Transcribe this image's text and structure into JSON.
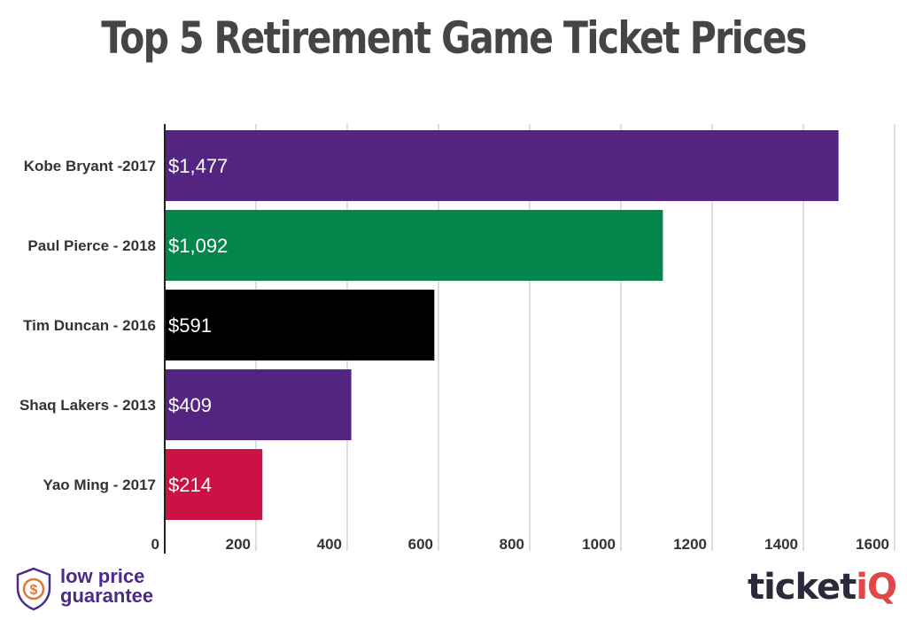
{
  "chart_data": {
    "type": "bar",
    "orientation": "horizontal",
    "title": "Top 5 Retirement Game Ticket Prices",
    "categories": [
      "Kobe Bryant -2017",
      "Paul Pierce - 2018",
      "Tim Duncan - 2016",
      "Shaq Lakers - 2013",
      "Yao Ming - 2017"
    ],
    "values": [
      1477,
      1092,
      591,
      409,
      214
    ],
    "value_labels": [
      "$1,477",
      "$1,092",
      "$591",
      "$409",
      "$214"
    ],
    "colors": [
      "#532580",
      "#03854b",
      "#000000",
      "#532580",
      "#cc1144"
    ],
    "x_ticks": [
      "0",
      "200",
      "400",
      "600",
      "800",
      "1000",
      "1200",
      "1400",
      "1600"
    ],
    "xlim": [
      0,
      1600
    ],
    "grid": true
  },
  "footer": {
    "guarantee_line1": "low price",
    "guarantee_line2": "guarantee",
    "guarantee_icon": "shield-dollar-icon",
    "brand_main": "ticket",
    "brand_accent": "iQ"
  }
}
